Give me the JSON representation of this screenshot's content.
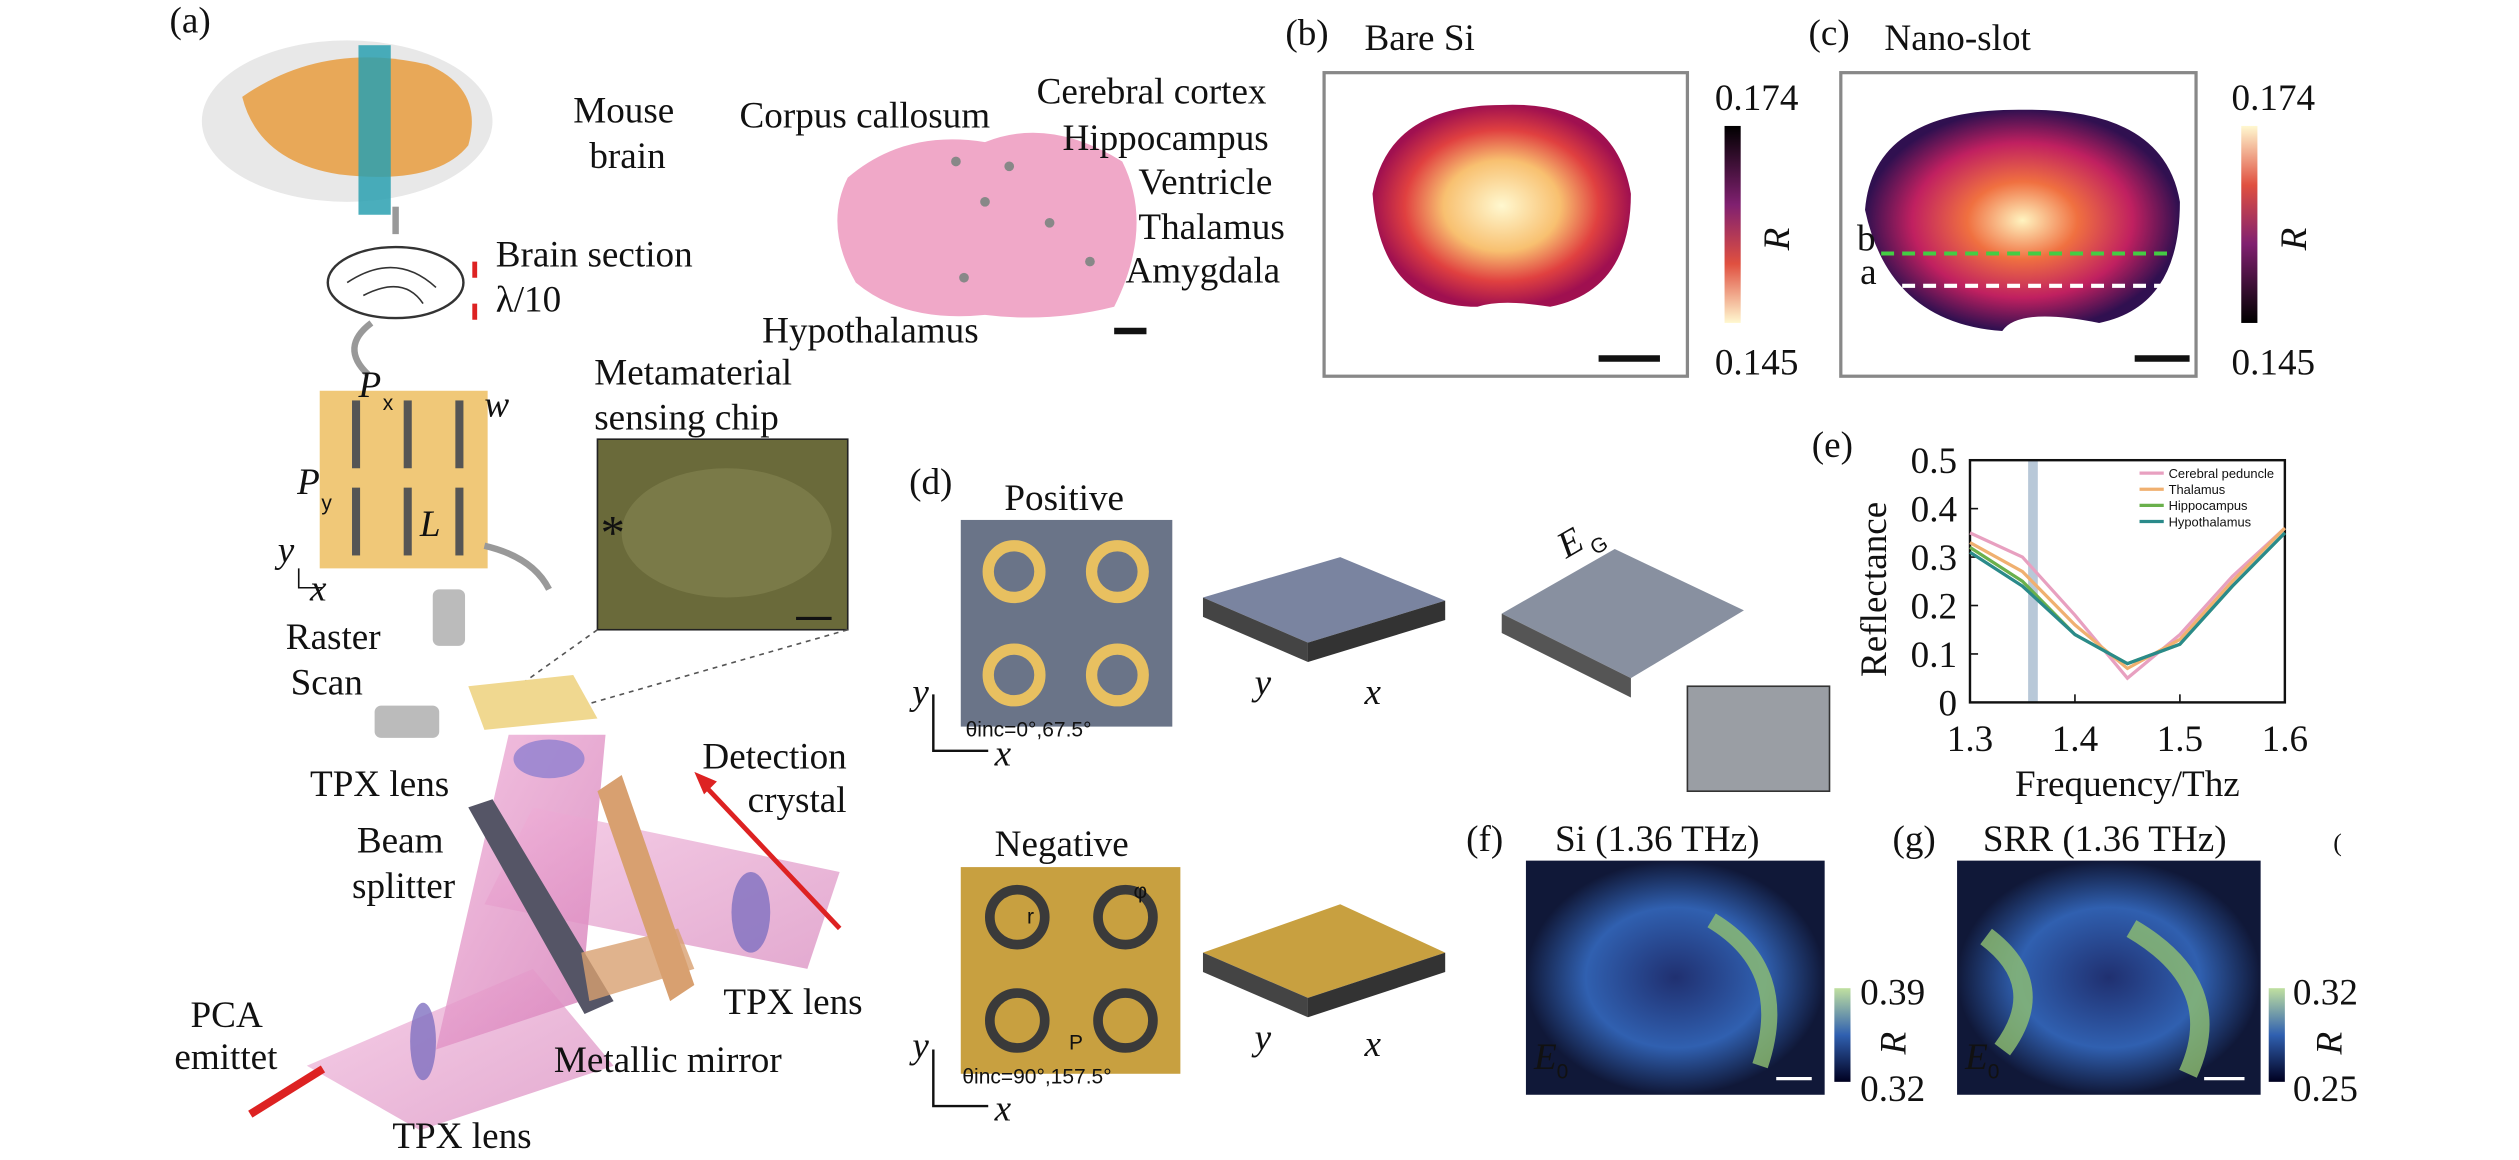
{
  "panels": {
    "a": {
      "label": "(a)",
      "mouse_brain": [
        "Mouse",
        "brain"
      ],
      "brain_section": "Brain section",
      "thickness": "λ/10",
      "px": "P",
      "px_sub": "x",
      "w": "w",
      "py": "P",
      "py_sub": "y",
      "l": "L",
      "axis_y": "y",
      "axis_x": "x",
      "chip_title": [
        "Metamaterial",
        "sensing chip"
      ],
      "raster": [
        "Raster",
        "Scan"
      ],
      "tpx_top": "TPX lens",
      "beam_splitter": [
        "Beam",
        "splitter"
      ],
      "detection": [
        "Detection",
        "crystal"
      ],
      "tpx_right": "TPX lens",
      "pca": [
        "PCA",
        "emittet"
      ],
      "mirror": "Metallic mirror",
      "tpx_bottom": "TPX lens"
    },
    "atlas": {
      "cortex": "Cerebral cortex",
      "callosum": "Corpus callosum",
      "hippocampus": "Hippocampus",
      "ventricle": "Ventricle",
      "thalamus": "Thalamus",
      "amygdala": "Amygdala",
      "hypothalamus": "Hypothalamus"
    },
    "b": {
      "label": "(b)",
      "title": "Bare Si",
      "cbar_max": "0.174",
      "cbar_min": "0.145",
      "cbar_label": "R"
    },
    "c": {
      "label": "(c)",
      "title": "Nano-slot",
      "cbar_max": "0.174",
      "cbar_min": "0.145",
      "cbar_label": "R",
      "line_b": "b",
      "line_a": "a"
    },
    "d": {
      "label": "(d)",
      "positive": "Positive",
      "negative": "Negative",
      "theta_pos": "θinc=0°,67.5°",
      "theta_neg": "θinc=90°,157.5°",
      "axis_y": "y",
      "axis_x": "x",
      "field": "E",
      "field_sub": "G",
      "r": "r",
      "p": "P",
      "phi": "φ"
    },
    "e": {
      "label": "(e)"
    },
    "f": {
      "label": "(f)",
      "title": "Si (1.36 THz)",
      "cbar_max": "0.39",
      "cbar_min": "0.32",
      "cbar_label": "R",
      "field": "E",
      "field_sub": "0"
    },
    "g": {
      "label": "(g)",
      "title": "SRR (1.36 THz)",
      "cbar_max": "0.32",
      "cbar_min": "0.25",
      "cbar_label": "R",
      "field": "E",
      "field_sub": "0"
    },
    "h": {
      "label": "("
    }
  },
  "chart_data": {
    "type": "line",
    "xlabel": "Frequency/Thz",
    "ylabel": "Reflectance",
    "x": [
      1.3,
      1.35,
      1.4,
      1.45,
      1.5,
      1.55,
      1.6
    ],
    "series": [
      {
        "name": "Cerebral peduncle",
        "color": "#e8a0c0",
        "values": [
          0.35,
          0.3,
          0.18,
          0.05,
          0.14,
          0.26,
          0.36
        ]
      },
      {
        "name": "Thalamus",
        "color": "#f0b070",
        "values": [
          0.33,
          0.27,
          0.16,
          0.07,
          0.13,
          0.25,
          0.36
        ]
      },
      {
        "name": "Hippocampus",
        "color": "#6ab04c",
        "values": [
          0.32,
          0.25,
          0.14,
          0.08,
          0.12,
          0.24,
          0.35
        ]
      },
      {
        "name": "Hypothalamus",
        "color": "#2a8a8a",
        "values": [
          0.31,
          0.24,
          0.14,
          0.08,
          0.12,
          0.24,
          0.35
        ]
      }
    ],
    "highlight_x": 1.36,
    "highlight_color": "#b8c8d8",
    "xlim": [
      1.3,
      1.6
    ],
    "ylim": [
      0,
      0.5
    ],
    "xticks": [
      1.3,
      1.4,
      1.5,
      1.6
    ],
    "yticks": [
      0,
      0.1,
      0.2,
      0.3,
      0.4,
      0.5
    ]
  }
}
